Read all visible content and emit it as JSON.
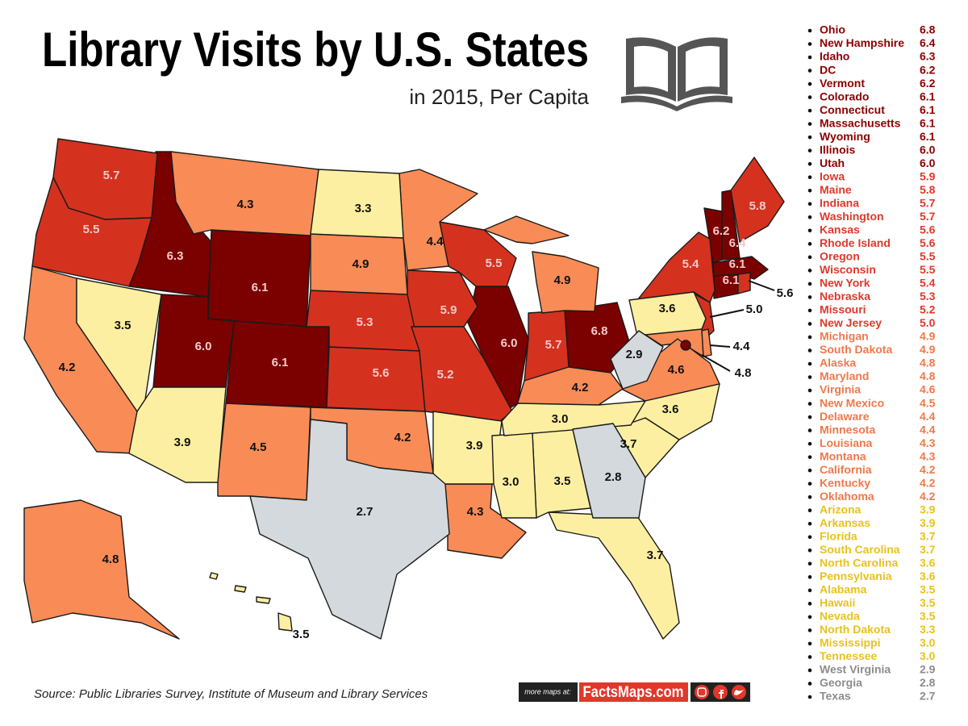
{
  "header": {
    "title": "Library Visits by U.S. States",
    "subtitle": "in 2015, Per Capita"
  },
  "ranking": [
    {
      "state": "Ohio",
      "value": "6.8",
      "color": "#7b0000",
      "text_color": "#8b0000"
    },
    {
      "state": "New Hampshire",
      "value": "6.4",
      "color": "#7b0000",
      "text_color": "#8b0000"
    },
    {
      "state": "Idaho",
      "value": "6.3",
      "color": "#7b0000",
      "text_color": "#8b0000"
    },
    {
      "state": "DC",
      "value": "6.2",
      "color": "#7b0000",
      "text_color": "#8b0000"
    },
    {
      "state": "Vermont",
      "value": "6.2",
      "color": "#7b0000",
      "text_color": "#8b0000"
    },
    {
      "state": "Colorado",
      "value": "6.1",
      "color": "#7b0000",
      "text_color": "#8b0000"
    },
    {
      "state": "Connecticut",
      "value": "6.1",
      "color": "#7b0000",
      "text_color": "#8b0000"
    },
    {
      "state": "Massachusetts",
      "value": "6.1",
      "color": "#7b0000",
      "text_color": "#8b0000"
    },
    {
      "state": "Wyoming",
      "value": "6.1",
      "color": "#7b0000",
      "text_color": "#8b0000"
    },
    {
      "state": "Illinois",
      "value": "6.0",
      "color": "#7b0000",
      "text_color": "#8b0000"
    },
    {
      "state": "Utah",
      "value": "6.0",
      "color": "#7b0000",
      "text_color": "#8b0000"
    },
    {
      "state": "Iowa",
      "value": "5.9",
      "color": "#d4321f",
      "text_color": "#e0382b"
    },
    {
      "state": "Maine",
      "value": "5.8",
      "color": "#d4321f",
      "text_color": "#e0382b"
    },
    {
      "state": "Indiana",
      "value": "5.7",
      "color": "#d4321f",
      "text_color": "#e0382b"
    },
    {
      "state": "Washington",
      "value": "5.7",
      "color": "#d4321f",
      "text_color": "#e0382b"
    },
    {
      "state": "Kansas",
      "value": "5.6",
      "color": "#d4321f",
      "text_color": "#e0382b"
    },
    {
      "state": "Rhode Island",
      "value": "5.6",
      "color": "#d4321f",
      "text_color": "#e0382b"
    },
    {
      "state": "Oregon",
      "value": "5.5",
      "color": "#d4321f",
      "text_color": "#e0382b"
    },
    {
      "state": "Wisconsin",
      "value": "5.5",
      "color": "#d4321f",
      "text_color": "#e0382b"
    },
    {
      "state": "New York",
      "value": "5.4",
      "color": "#d4321f",
      "text_color": "#e0382b"
    },
    {
      "state": "Nebraska",
      "value": "5.3",
      "color": "#d4321f",
      "text_color": "#e0382b"
    },
    {
      "state": "Missouri",
      "value": "5.2",
      "color": "#d4321f",
      "text_color": "#e0382b"
    },
    {
      "state": "New Jersey",
      "value": "5.0",
      "color": "#d4321f",
      "text_color": "#e0382b"
    },
    {
      "state": "Michigan",
      "value": "4.9",
      "color": "#f98b56",
      "text_color": "#f0784a"
    },
    {
      "state": "South Dakota",
      "value": "4.9",
      "color": "#f98b56",
      "text_color": "#f0784a"
    },
    {
      "state": "Alaska",
      "value": "4.8",
      "color": "#f98b56",
      "text_color": "#f0784a"
    },
    {
      "state": "Maryland",
      "value": "4.8",
      "color": "#f98b56",
      "text_color": "#f0784a"
    },
    {
      "state": "Virginia",
      "value": "4.6",
      "color": "#f98b56",
      "text_color": "#f0784a"
    },
    {
      "state": "New Mexico",
      "value": "4.5",
      "color": "#f98b56",
      "text_color": "#f0784a"
    },
    {
      "state": "Delaware",
      "value": "4.4",
      "color": "#f98b56",
      "text_color": "#f0784a"
    },
    {
      "state": "Minnesota",
      "value": "4.4",
      "color": "#f98b56",
      "text_color": "#f0784a"
    },
    {
      "state": "Louisiana",
      "value": "4.3",
      "color": "#f98b56",
      "text_color": "#f0784a"
    },
    {
      "state": "Montana",
      "value": "4.3",
      "color": "#f98b56",
      "text_color": "#f0784a"
    },
    {
      "state": "California",
      "value": "4.2",
      "color": "#f98b56",
      "text_color": "#f0784a"
    },
    {
      "state": "Kentucky",
      "value": "4.2",
      "color": "#f98b56",
      "text_color": "#f0784a"
    },
    {
      "state": "Oklahoma",
      "value": "4.2",
      "color": "#f98b56",
      "text_color": "#f0784a"
    },
    {
      "state": "Arizona",
      "value": "3.9",
      "color": "#fdefa1",
      "text_color": "#e8c21c"
    },
    {
      "state": "Arkansas",
      "value": "3.9",
      "color": "#fdefa1",
      "text_color": "#e8c21c"
    },
    {
      "state": "Florida",
      "value": "3.7",
      "color": "#fdefa1",
      "text_color": "#e8c21c"
    },
    {
      "state": "South Carolina",
      "value": "3.7",
      "color": "#fdefa1",
      "text_color": "#e8c21c"
    },
    {
      "state": "North Carolina",
      "value": "3.6",
      "color": "#fdefa1",
      "text_color": "#e8c21c"
    },
    {
      "state": "Pennsylvania",
      "value": "3.6",
      "color": "#fdefa1",
      "text_color": "#e8c21c"
    },
    {
      "state": "Alabama",
      "value": "3.5",
      "color": "#fdefa1",
      "text_color": "#e8c21c"
    },
    {
      "state": "Hawaii",
      "value": "3.5",
      "color": "#fdefa1",
      "text_color": "#e8c21c"
    },
    {
      "state": "Nevada",
      "value": "3.5",
      "color": "#fdefa1",
      "text_color": "#e8c21c"
    },
    {
      "state": "North Dakota",
      "value": "3.3",
      "color": "#fdefa1",
      "text_color": "#e8c21c"
    },
    {
      "state": "Mississippi",
      "value": "3.0",
      "color": "#fdefa1",
      "text_color": "#e8c21c"
    },
    {
      "state": "Tennessee",
      "value": "3.0",
      "color": "#fdefa1",
      "text_color": "#e8c21c"
    },
    {
      "state": "West Virginia",
      "value": "2.9",
      "color": "#d3d9dc",
      "text_color": "#8c8c8c"
    },
    {
      "state": "Georgia",
      "value": "2.8",
      "color": "#d3d9dc",
      "text_color": "#8c8c8c"
    },
    {
      "state": "Texas",
      "value": "2.7",
      "color": "#d3d9dc",
      "text_color": "#8c8c8c"
    }
  ],
  "footer": {
    "source": "Source: Public Libraries Survey, Institute of Museum and Library Services",
    "promo": "more maps at:",
    "brand": "FactsMaps.com"
  }
}
